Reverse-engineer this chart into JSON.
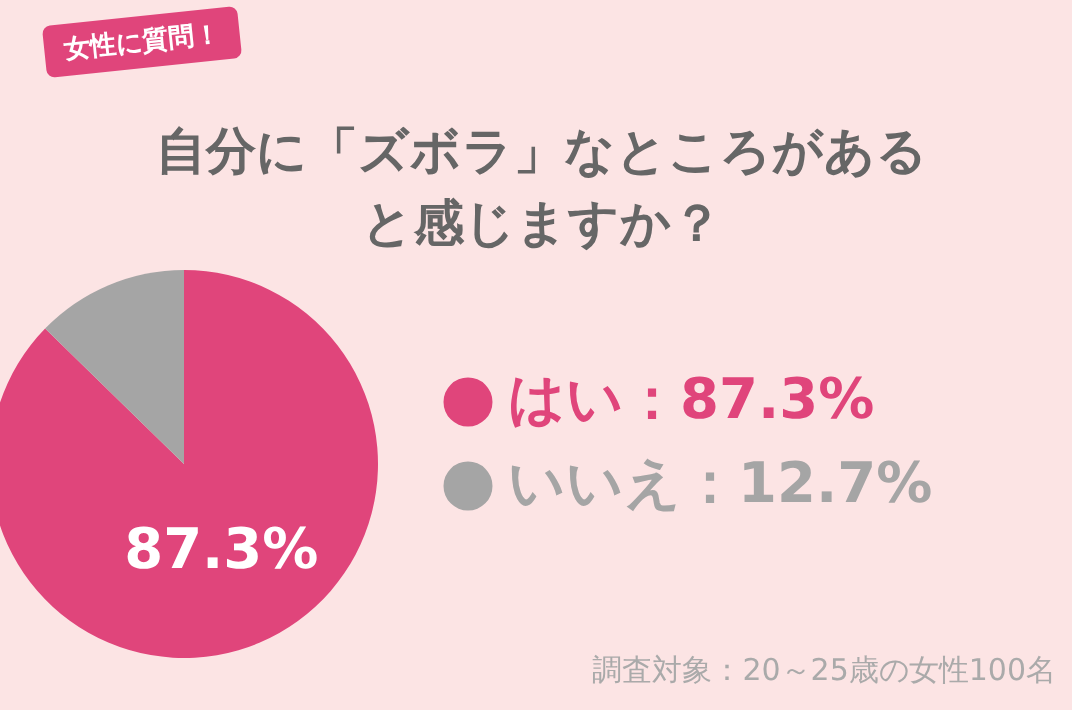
{
  "chart_data": {
    "type": "pie",
    "subtitle": "女性に質問！",
    "title": "自分に「ズボラ」なところがあると感じますか？",
    "categories": [
      "はい",
      "いいえ"
    ],
    "values": [
      87.3,
      12.7
    ],
    "colors": [
      "#e0457b",
      "#a5a5a5"
    ],
    "value_labels": [
      "87.3%",
      "12.7%"
    ],
    "legend": "right",
    "annotations": [
      "調査対象：20～25歳の女性100名"
    ]
  }
}
